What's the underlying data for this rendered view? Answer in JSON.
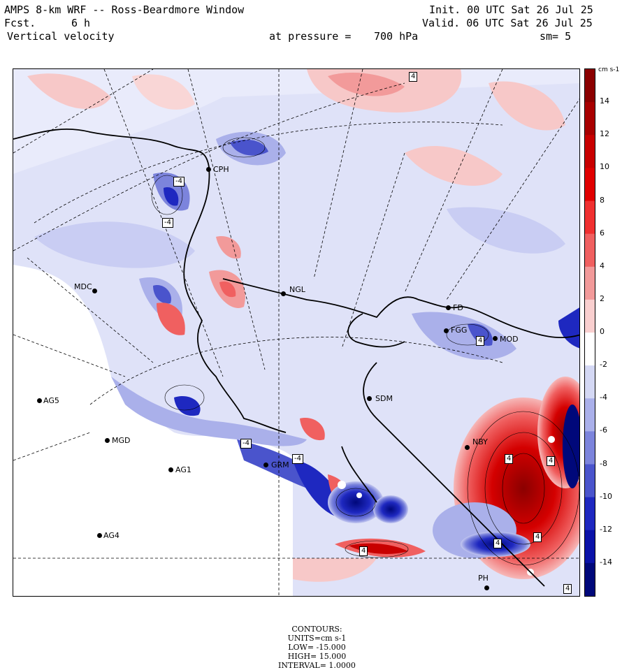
{
  "header": {
    "title": "AMPS 8-km WRF -- Ross-Beardmore Window",
    "fcst_label": "Fcst.",
    "fcst_value": "6 h",
    "field": "Vertical velocity",
    "pressure_label": "at pressure =",
    "pressure_value": "700 hPa",
    "smooth": "sm= 5",
    "init": "Init. 00 UTC Sat 26 Jul 25",
    "valid": "Valid. 06 UTC Sat 26 Jul 25"
  },
  "colorbar": {
    "unit": "cm s-1",
    "ticks": [
      "14",
      "12",
      "10",
      "8",
      "6",
      "4",
      "2",
      "0",
      "-2",
      "-4",
      "-6",
      "-8",
      "-10",
      "-12",
      "-14"
    ],
    "colors": [
      "#8b0000",
      "#a80000",
      "#c80000",
      "#e00000",
      "#f03030",
      "#f06060",
      "#f29a9a",
      "#f9cfcf",
      "#ffffff",
      "#d4d8f4",
      "#aab0ea",
      "#7c84dc",
      "#4a54cc",
      "#1e28c0",
      "#0a12a8",
      "#00087a"
    ]
  },
  "footer": {
    "contours_label": "CONTOURS:",
    "units": "UNITS=cm s-1",
    "low": "LOW= -15.000",
    "high": "HIGH= 15.000",
    "interval": "INTERVAL= 1.0000"
  },
  "stations": [
    {
      "name": "CPH"
    },
    {
      "name": "MDC"
    },
    {
      "name": "NGL"
    },
    {
      "name": "FD"
    },
    {
      "name": "FGG"
    },
    {
      "name": "MOD"
    },
    {
      "name": "AG5"
    },
    {
      "name": "MGD"
    },
    {
      "name": "AG1"
    },
    {
      "name": "AG4"
    },
    {
      "name": "SDM"
    },
    {
      "name": "GRM"
    },
    {
      "name": "NBY"
    },
    {
      "name": "PH"
    }
  ],
  "contour_labels": [
    "4",
    "-4",
    "-4",
    "4",
    "-4",
    "4",
    "4",
    "4",
    "4",
    "4",
    "4",
    "-4"
  ]
}
